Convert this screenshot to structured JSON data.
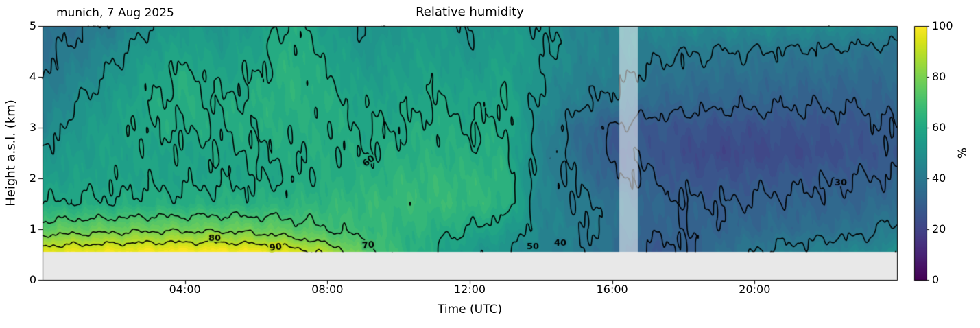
{
  "chart_data": {
    "type": "heatmap",
    "title": "Relative humidity",
    "annotation": "munich, 7 Aug 2025",
    "xlabel": "Time (UTC)",
    "ylabel": "Height a.s.l. (km)",
    "xlim": [
      0,
      24
    ],
    "ylim": [
      0,
      5
    ],
    "x_ticks": [
      {
        "v": 4,
        "label": "04:00"
      },
      {
        "v": 8,
        "label": "08:00"
      },
      {
        "v": 12,
        "label": "12:00"
      },
      {
        "v": 16,
        "label": "16:00"
      },
      {
        "v": 20,
        "label": "20:00"
      }
    ],
    "y_ticks": [
      {
        "v": 0,
        "label": "0"
      },
      {
        "v": 1,
        "label": "1"
      },
      {
        "v": 2,
        "label": "2"
      },
      {
        "v": 3,
        "label": "3"
      },
      {
        "v": 4,
        "label": "4"
      },
      {
        "v": 5,
        "label": "5"
      }
    ],
    "hours": [
      0,
      1,
      2,
      3,
      4,
      5,
      6,
      7,
      8,
      9,
      10,
      11,
      12,
      13,
      14,
      15,
      16,
      17,
      18,
      19,
      20,
      21,
      22,
      23,
      24
    ],
    "heights_km": [
      0.55,
      0.8,
      1.0,
      1.5,
      2.0,
      2.5,
      3.0,
      3.5,
      4.0,
      4.5,
      5.0
    ],
    "rh_percent": [
      [
        96,
        97,
        98,
        99,
        100,
        100,
        99,
        95,
        88,
        74,
        66,
        60,
        54,
        50,
        44,
        41,
        36,
        28,
        29,
        36,
        40,
        42,
        44,
        46,
        48
      ],
      [
        84,
        85,
        86,
        87,
        87,
        87,
        85,
        82,
        76,
        70,
        65,
        61,
        57,
        53,
        45,
        42,
        37,
        30,
        30,
        34,
        37,
        39,
        40,
        41,
        44
      ],
      [
        75,
        76,
        77,
        78,
        78,
        78,
        77,
        74,
        70,
        67,
        65,
        63,
        60,
        56,
        46,
        42,
        38,
        32,
        31,
        32,
        34,
        35,
        36,
        38,
        42
      ],
      [
        60,
        61,
        61,
        62,
        62,
        63,
        63,
        64,
        65,
        66,
        67,
        67,
        66,
        64,
        45,
        41,
        38,
        33,
        31,
        30,
        31,
        32,
        32,
        33,
        36
      ],
      [
        55,
        57,
        58,
        58,
        58,
        59,
        59,
        60,
        62,
        63,
        65,
        66,
        65,
        64,
        45,
        39,
        31,
        30,
        27,
        26,
        27,
        28,
        29,
        30,
        31
      ],
      [
        52,
        55,
        57,
        58,
        58,
        59,
        60,
        61,
        62,
        60,
        62,
        63,
        62,
        62,
        45,
        36,
        28,
        28,
        24,
        22,
        22,
        23,
        24,
        26,
        28
      ],
      [
        45,
        53,
        57,
        60,
        61,
        60,
        62,
        62,
        62,
        60,
        60,
        62,
        60,
        61,
        46,
        36,
        29,
        27,
        26,
        25,
        25,
        26,
        26,
        27,
        31
      ],
      [
        42,
        50,
        55,
        60,
        62,
        60,
        62,
        63,
        62,
        58,
        58,
        60,
        58,
        60,
        48,
        42,
        38,
        34,
        33,
        32,
        32,
        31,
        31,
        31,
        33
      ],
      [
        40,
        45,
        52,
        58,
        62,
        58,
        60,
        64,
        60,
        55,
        56,
        58,
        55,
        58,
        50,
        44,
        42,
        38,
        37,
        36,
        36,
        35,
        35,
        34,
        35
      ],
      [
        38,
        42,
        48,
        55,
        58,
        55,
        58,
        63,
        58,
        52,
        55,
        56,
        52,
        56,
        52,
        46,
        44,
        42,
        41,
        40,
        40,
        39,
        39,
        38,
        37
      ],
      [
        36,
        38,
        42,
        50,
        55,
        52,
        55,
        62,
        55,
        50,
        52,
        55,
        50,
        55,
        50,
        45,
        44,
        46,
        47,
        47,
        48,
        48,
        48,
        47,
        46
      ]
    ],
    "terrain": {
      "top_km": 0.55,
      "color": "#e8e8e8"
    },
    "missing_band": {
      "t_start": 16.2,
      "t_end": 16.72,
      "overlay": "rgba(255,255,255,0.55)"
    },
    "contours": {
      "levels": [
        30,
        40,
        50,
        60,
        70,
        80,
        90
      ],
      "color": "#000000",
      "labels": [
        {
          "level": 80,
          "t": 4.84,
          "h": 0.81,
          "angle": 0
        },
        {
          "level": 90,
          "t": 6.55,
          "h": 0.64,
          "angle": -8
        },
        {
          "level": 70,
          "t": 9.15,
          "h": 0.68,
          "angle": -5
        },
        {
          "level": 60,
          "t": 9.16,
          "h": 2.34,
          "angle": -38
        },
        {
          "level": 50,
          "t": 13.78,
          "h": 0.65,
          "angle": 0
        },
        {
          "level": 40,
          "t": 14.55,
          "h": 0.72,
          "angle": 0
        },
        {
          "level": 30,
          "t": 22.43,
          "h": 1.9,
          "angle": 0
        }
      ]
    },
    "colorbar": {
      "label": "%",
      "ticks": [
        0,
        20,
        40,
        60,
        80,
        100
      ],
      "vmin": 0,
      "vmax": 100,
      "colormap": "viridis"
    },
    "colormap_stops": [
      [
        0.0,
        68,
        1,
        84
      ],
      [
        0.05,
        71,
        18,
        101
      ],
      [
        0.1,
        72,
        36,
        117
      ],
      [
        0.15,
        70,
        52,
        128
      ],
      [
        0.2,
        65,
        68,
        135
      ],
      [
        0.25,
        59,
        82,
        139
      ],
      [
        0.3,
        53,
        95,
        141
      ],
      [
        0.35,
        47,
        108,
        142
      ],
      [
        0.4,
        42,
        120,
        142
      ],
      [
        0.45,
        37,
        132,
        142
      ],
      [
        0.5,
        33,
        145,
        140
      ],
      [
        0.55,
        30,
        156,
        137
      ],
      [
        0.6,
        34,
        168,
        132
      ],
      [
        0.65,
        47,
        180,
        124
      ],
      [
        0.7,
        68,
        191,
        112
      ],
      [
        0.75,
        94,
        201,
        98
      ],
      [
        0.8,
        122,
        209,
        81
      ],
      [
        0.85,
        155,
        217,
        60
      ],
      [
        0.9,
        189,
        223,
        38
      ],
      [
        0.95,
        223,
        227,
        24
      ],
      [
        1.0,
        253,
        231,
        37
      ]
    ]
  }
}
